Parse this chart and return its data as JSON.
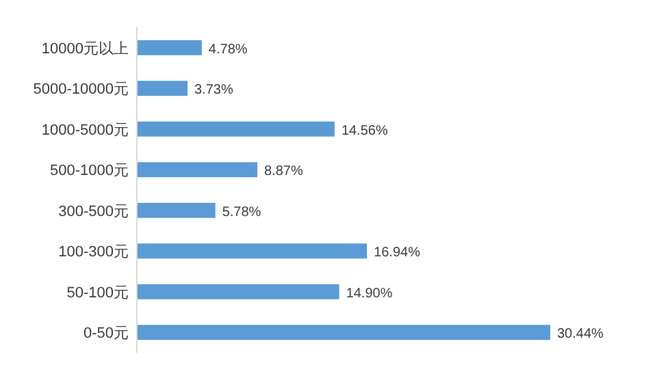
{
  "chart_data": {
    "type": "bar",
    "orientation": "horizontal",
    "categories": [
      "10000元以上",
      "5000-10000元",
      "1000-5000元",
      "500-1000元",
      "300-500元",
      "100-300元",
      "50-100元",
      "0-50元"
    ],
    "values": [
      4.78,
      3.73,
      14.56,
      8.87,
      5.78,
      16.94,
      14.9,
      30.44
    ],
    "value_labels": [
      "4.78%",
      "3.73%",
      "14.56%",
      "8.87%",
      "5.78%",
      "16.94%",
      "14.90%",
      "30.44%"
    ],
    "color": "#5b9bd5"
  }
}
